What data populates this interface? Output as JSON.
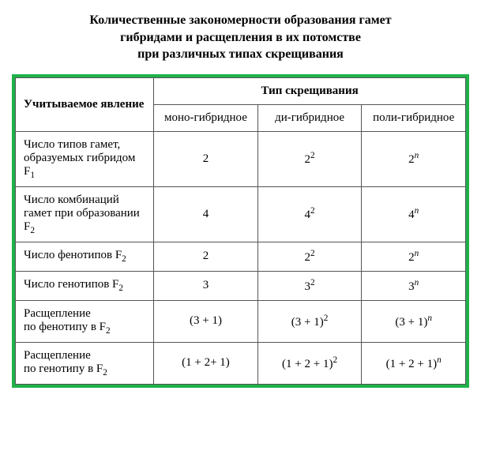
{
  "title_line1": "Количественные закономерности образования гамет",
  "title_line2": "гибридами и расщепления в их потомстве",
  "title_line3": "при различных типах скрещивания",
  "header": {
    "phenomenon": "Учитываемое явление",
    "crosstype": "Тип скрещивания",
    "mono": "моно-гибридное",
    "di": "ди-гибридное",
    "poly": "поли-гибридное"
  },
  "rows": [
    {
      "label_html": "Число типов гамет, образуемых гибридом F<sub>1</sub>",
      "mono": "2",
      "di": "2<sup>2</sup>",
      "poly": "2<sup><i>n</i></sup>"
    },
    {
      "label_html": "Число комбинаций гамет при образовании F<sub>2</sub>",
      "mono": "4",
      "di": "4<sup>2</sup>",
      "poly": "4<sup><i>n</i></sup>"
    },
    {
      "label_html": "Число фенотипов F<sub>2</sub>",
      "mono": "2",
      "di": "2<sup>2</sup>",
      "poly": "2<sup><i>n</i></sup>"
    },
    {
      "label_html": "Число генотипов F<sub>2</sub>",
      "mono": "3",
      "di": "3<sup>2</sup>",
      "poly": "3<sup><i>n</i></sup>"
    },
    {
      "label_html": "Расщепление по&nbsp;фенотипу в F<sub>2</sub>",
      "mono": "(3 + 1)",
      "di": "(3 + 1)<sup>2</sup>",
      "poly": "(3 + 1)<sup><i>n</i></sup>"
    },
    {
      "label_html": "Расщепление по&nbsp;генотипу в F<sub>2</sub>",
      "mono": "(1 + 2+ 1)",
      "di": "(1 + 2 + 1)<sup>2</sup>",
      "poly": "(1 + 2 + 1)<sup><i>n</i></sup>"
    }
  ],
  "style": {
    "border_color": "#1fb14a",
    "cell_border_color": "#555555",
    "background": "#ffffff",
    "title_fontsize": 16,
    "body_fontsize": 15
  }
}
